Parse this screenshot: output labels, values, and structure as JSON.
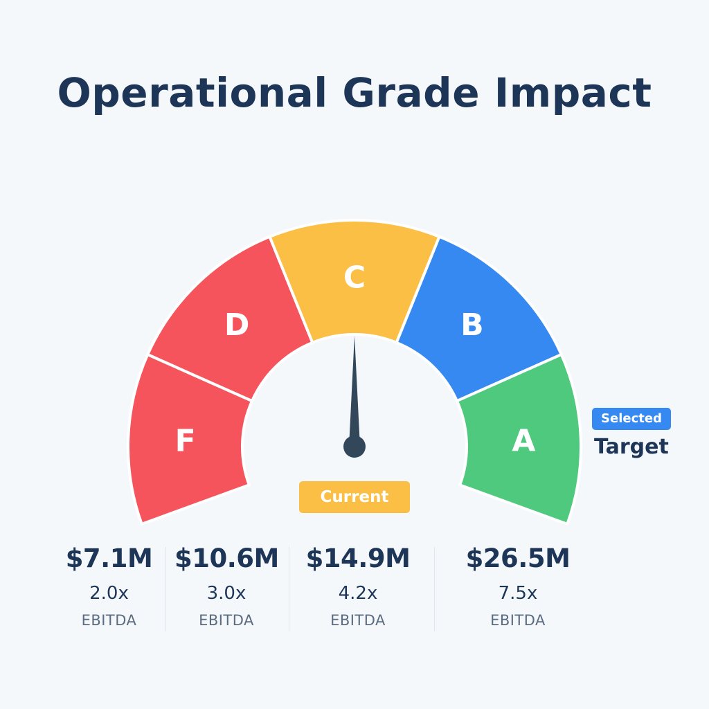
{
  "title": "Operational Grade Impact",
  "chart_data": {
    "type": "gauge",
    "segments": [
      {
        "grade": "F",
        "color": "#f5545c"
      },
      {
        "grade": "D",
        "color": "#f5545c"
      },
      {
        "grade": "C",
        "color": "#fbbf46"
      },
      {
        "grade": "B",
        "color": "#3589f0"
      },
      {
        "grade": "A",
        "color": "#4ec97d"
      }
    ],
    "needle_grade": "C",
    "current_label": "Current",
    "selected_badge": "Selected",
    "target_label": "Target",
    "target_grade": "A",
    "values": [
      {
        "amount": "$7.1M",
        "multiple": "2.0x",
        "unit": "EBITDA"
      },
      {
        "amount": "$10.6M",
        "multiple": "3.0x",
        "unit": "EBITDA"
      },
      {
        "amount": "$14.9M",
        "multiple": "4.2x",
        "unit": "EBITDA"
      },
      {
        "amount": "$26.5M",
        "multiple": "7.5x",
        "unit": "EBITDA"
      }
    ]
  },
  "colors": {
    "title": "#1d3557",
    "background": "#f5f8fb",
    "needle": "#33475b"
  }
}
